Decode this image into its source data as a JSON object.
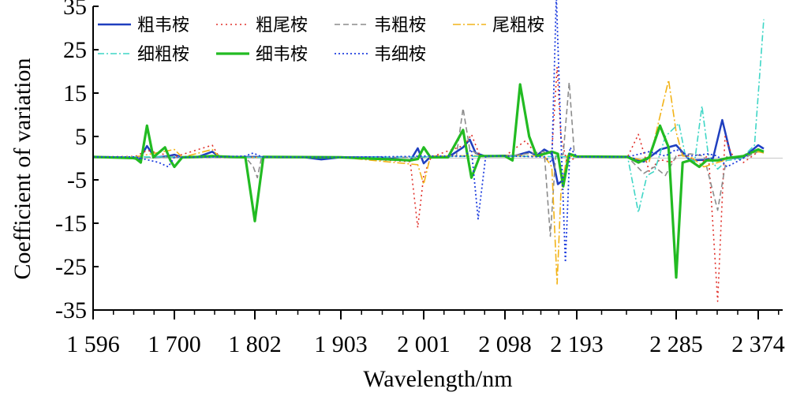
{
  "chart_data": {
    "type": "line",
    "xlabel": "Wavelength/nm",
    "ylabel": "Coefficient of variation",
    "xlim": [
      1596,
      2374
    ],
    "ylim": [
      -35,
      35
    ],
    "x_ticks": [
      1596,
      1700,
      1802,
      1903,
      2001,
      2098,
      2193,
      2285,
      2374
    ],
    "x_tick_labels": [
      "1 596",
      "1 700",
      "1 802",
      "1 903",
      "2 001",
      "2 098",
      "2 193",
      "2 285",
      "2 374"
    ],
    "y_ticks": [
      35,
      25,
      15,
      5,
      -5,
      -15,
      -25,
      -35
    ],
    "y_tick_labels": [
      "35",
      "25",
      "15",
      "5",
      "-5",
      "-15",
      "-25",
      "-35"
    ],
    "zero_line": true,
    "legend_position": "top-left",
    "series": [
      {
        "name": "粗韦桉",
        "color": "#1f3fbf",
        "dash": "solid",
        "width": 2.5,
        "points": [
          [
            1596,
            0.3
          ],
          [
            1640,
            0.2
          ],
          [
            1655,
            -0.3
          ],
          [
            1665,
            2.8
          ],
          [
            1675,
            0.2
          ],
          [
            1690,
            0.4
          ],
          [
            1700,
            0.8
          ],
          [
            1710,
            0.2
          ],
          [
            1730,
            0.3
          ],
          [
            1748,
            1.5
          ],
          [
            1757,
            0.4
          ],
          [
            1780,
            0.3
          ],
          [
            1802,
            0.3
          ],
          [
            1830,
            0.2
          ],
          [
            1860,
            0.2
          ],
          [
            1880,
            -0.3
          ],
          [
            1903,
            0.2
          ],
          [
            1950,
            0.2
          ],
          [
            1985,
            -0.6
          ],
          [
            1994,
            2.3
          ],
          [
            2001,
            -1.2
          ],
          [
            2009,
            0.3
          ],
          [
            2030,
            0.2
          ],
          [
            2048,
            2.5
          ],
          [
            2056,
            4.3
          ],
          [
            2063,
            1.2
          ],
          [
            2075,
            0.4
          ],
          [
            2098,
            0.6
          ],
          [
            2110,
            0.5
          ],
          [
            2130,
            1.5
          ],
          [
            2140,
            0.6
          ],
          [
            2150,
            2.0
          ],
          [
            2160,
            1.0
          ],
          [
            2168,
            -6.0
          ],
          [
            2175,
            -5.0
          ],
          [
            2183,
            1.0
          ],
          [
            2193,
            0.4
          ],
          [
            2220,
            0.3
          ],
          [
            2240,
            0.3
          ],
          [
            2255,
            -0.8
          ],
          [
            2270,
            2.0
          ],
          [
            2285,
            3.0
          ],
          [
            2300,
            -0.5
          ],
          [
            2315,
            -0.4
          ],
          [
            2325,
            0.0
          ],
          [
            2335,
            8.8
          ],
          [
            2345,
            0.0
          ],
          [
            2358,
            0.2
          ],
          [
            2374,
            3.0
          ],
          [
            2380,
            2.2
          ]
        ]
      },
      {
        "name": "粗尾桉",
        "color": "#e0302a",
        "dash": "2,4",
        "width": 1.6,
        "points": [
          [
            1596,
            0.3
          ],
          [
            1650,
            0.4
          ],
          [
            1665,
            1.8
          ],
          [
            1700,
            0.3
          ],
          [
            1748,
            3.0
          ],
          [
            1757,
            0.2
          ],
          [
            1802,
            0.2
          ],
          [
            1903,
            0.2
          ],
          [
            1985,
            -0.8
          ],
          [
            1994,
            -16.0
          ],
          [
            2001,
            -4.0
          ],
          [
            2010,
            0.3
          ],
          [
            2050,
            3.0
          ],
          [
            2058,
            5.5
          ],
          [
            2068,
            0.6
          ],
          [
            2098,
            0.5
          ],
          [
            2125,
            4.0
          ],
          [
            2140,
            0.8
          ],
          [
            2160,
            1.5
          ],
          [
            2167,
            21.0
          ],
          [
            2172,
            5.0
          ],
          [
            2180,
            -1.0
          ],
          [
            2193,
            0.3
          ],
          [
            2240,
            0.3
          ],
          [
            2250,
            5.5
          ],
          [
            2260,
            -3.0
          ],
          [
            2270,
            -0.3
          ],
          [
            2280,
            -1.0
          ],
          [
            2290,
            1.0
          ],
          [
            2300,
            0.2
          ],
          [
            2310,
            -2.0
          ],
          [
            2320,
            1.0
          ],
          [
            2330,
            -33.0
          ],
          [
            2338,
            5.0
          ],
          [
            2345,
            1.0
          ],
          [
            2358,
            -1.0
          ],
          [
            2374,
            1.5
          ],
          [
            2380,
            1.2
          ]
        ]
      },
      {
        "name": "韦粗桉",
        "color": "#8c8c8c",
        "dash": "7,4",
        "width": 1.6,
        "points": [
          [
            1596,
            0.3
          ],
          [
            1650,
            0.2
          ],
          [
            1700,
            0.2
          ],
          [
            1757,
            0.2
          ],
          [
            1790,
            0.3
          ],
          [
            1800,
            -2.0
          ],
          [
            1805,
            -4.5
          ],
          [
            1810,
            0.3
          ],
          [
            1903,
            0.2
          ],
          [
            2001,
            0.2
          ],
          [
            2040,
            0.5
          ],
          [
            2048,
            11.5
          ],
          [
            2056,
            2.0
          ],
          [
            2070,
            0.5
          ],
          [
            2098,
            0.4
          ],
          [
            2150,
            1.5
          ],
          [
            2158,
            -18.0
          ],
          [
            2165,
            0.5
          ],
          [
            2175,
            0.8
          ],
          [
            2183,
            17.5
          ],
          [
            2190,
            0.5
          ],
          [
            2240,
            0.3
          ],
          [
            2255,
            -3.5
          ],
          [
            2265,
            -2.0
          ],
          [
            2275,
            -4.0
          ],
          [
            2285,
            0.5
          ],
          [
            2300,
            1.0
          ],
          [
            2315,
            0.5
          ],
          [
            2330,
            -12.0
          ],
          [
            2340,
            0.5
          ],
          [
            2358,
            0.0
          ],
          [
            2374,
            1.5
          ],
          [
            2380,
            1.2
          ]
        ]
      },
      {
        "name": "尾粗桉",
        "color": "#f2b318",
        "dash": "10,3,2,3",
        "width": 1.6,
        "points": [
          [
            1596,
            0.3
          ],
          [
            1650,
            0.3
          ],
          [
            1700,
            2.0
          ],
          [
            1710,
            0.2
          ],
          [
            1748,
            2.0
          ],
          [
            1757,
            0.3
          ],
          [
            1802,
            0.2
          ],
          [
            1903,
            0.2
          ],
          [
            1994,
            -1.5
          ],
          [
            2001,
            -6.0
          ],
          [
            2009,
            0.5
          ],
          [
            2098,
            0.6
          ],
          [
            2150,
            0.5
          ],
          [
            2160,
            -2.0
          ],
          [
            2167,
            -29.0
          ],
          [
            2172,
            -8.0
          ],
          [
            2180,
            0.5
          ],
          [
            2193,
            0.3
          ],
          [
            2240,
            0.3
          ],
          [
            2260,
            -0.8
          ],
          [
            2278,
            18.0
          ],
          [
            2285,
            6.0
          ],
          [
            2292,
            0.5
          ],
          [
            2300,
            0.4
          ],
          [
            2315,
            -2.0
          ],
          [
            2330,
            -1.0
          ],
          [
            2345,
            0.0
          ],
          [
            2374,
            1.5
          ],
          [
            2380,
            1.2
          ]
        ]
      },
      {
        "name": "细粗桉",
        "color": "#3fd6c6",
        "dash": "8,3,2,3",
        "width": 1.6,
        "points": [
          [
            1596,
            0.3
          ],
          [
            1700,
            0.3
          ],
          [
            1802,
            0.2
          ],
          [
            1903,
            0.2
          ],
          [
            2001,
            0.3
          ],
          [
            2098,
            0.5
          ],
          [
            2193,
            0.3
          ],
          [
            2240,
            0.4
          ],
          [
            2250,
            -12.5
          ],
          [
            2258,
            -4.0
          ],
          [
            2265,
            -3.0
          ],
          [
            2275,
            5.0
          ],
          [
            2288,
            8.0
          ],
          [
            2295,
            0.5
          ],
          [
            2305,
            -0.8
          ],
          [
            2313,
            12.0
          ],
          [
            2320,
            0.5
          ],
          [
            2330,
            -2.5
          ],
          [
            2340,
            -0.5
          ],
          [
            2355,
            -0.2
          ],
          [
            2370,
            3.0
          ],
          [
            2380,
            32.0
          ]
        ]
      },
      {
        "name": "细韦桉",
        "color": "#22bb22",
        "dash": "solid",
        "width": 3.2,
        "points": [
          [
            1596,
            0.3
          ],
          [
            1650,
            0.0
          ],
          [
            1657,
            -1.0
          ],
          [
            1665,
            7.5
          ],
          [
            1673,
            0.2
          ],
          [
            1688,
            2.5
          ],
          [
            1695,
            -0.5
          ],
          [
            1700,
            -2.0
          ],
          [
            1710,
            0.2
          ],
          [
            1730,
            0.3
          ],
          [
            1748,
            0.5
          ],
          [
            1770,
            0.3
          ],
          [
            1790,
            0.2
          ],
          [
            1802,
            -14.5
          ],
          [
            1812,
            0.3
          ],
          [
            1903,
            0.2
          ],
          [
            1985,
            -0.5
          ],
          [
            1994,
            -0.2
          ],
          [
            2001,
            2.5
          ],
          [
            2009,
            0.2
          ],
          [
            2030,
            0.2
          ],
          [
            2048,
            6.5
          ],
          [
            2058,
            -4.5
          ],
          [
            2068,
            0.5
          ],
          [
            2098,
            0.5
          ],
          [
            2108,
            -0.5
          ],
          [
            2118,
            17.0
          ],
          [
            2130,
            5.0
          ],
          [
            2140,
            0.5
          ],
          [
            2160,
            1.5
          ],
          [
            2168,
            1.0
          ],
          [
            2175,
            -6.5
          ],
          [
            2183,
            1.0
          ],
          [
            2193,
            0.4
          ],
          [
            2240,
            0.3
          ],
          [
            2250,
            -1.0
          ],
          [
            2260,
            0.2
          ],
          [
            2270,
            7.5
          ],
          [
            2278,
            2.5
          ],
          [
            2285,
            -27.5
          ],
          [
            2292,
            -1.0
          ],
          [
            2300,
            -0.5
          ],
          [
            2310,
            -2.0
          ],
          [
            2318,
            -0.5
          ],
          [
            2330,
            -0.5
          ],
          [
            2340,
            0.0
          ],
          [
            2358,
            0.5
          ],
          [
            2374,
            2.0
          ],
          [
            2380,
            1.5
          ]
        ]
      },
      {
        "name": "韦细桉",
        "color": "#1f3fdf",
        "dash": "2,3",
        "width": 1.8,
        "points": [
          [
            1596,
            0.3
          ],
          [
            1650,
            0.3
          ],
          [
            1680,
            -1.0
          ],
          [
            1692,
            -2.0
          ],
          [
            1700,
            0.2
          ],
          [
            1757,
            0.3
          ],
          [
            1790,
            0.5
          ],
          [
            1800,
            1.2
          ],
          [
            1810,
            0.3
          ],
          [
            1903,
            0.2
          ],
          [
            1985,
            0.4
          ],
          [
            2001,
            0.5
          ],
          [
            2050,
            0.5
          ],
          [
            2058,
            2.0
          ],
          [
            2066,
            -14.0
          ],
          [
            2075,
            0.5
          ],
          [
            2098,
            0.5
          ],
          [
            2150,
            0.3
          ],
          [
            2160,
            -1.0
          ],
          [
            2166,
            37.5
          ],
          [
            2172,
            5.0
          ],
          [
            2178,
            -24.0
          ],
          [
            2184,
            2.5
          ],
          [
            2193,
            0.3
          ],
          [
            2240,
            0.3
          ],
          [
            2260,
            1.5
          ],
          [
            2275,
            0.5
          ],
          [
            2285,
            2.0
          ],
          [
            2300,
            0.5
          ],
          [
            2320,
            1.0
          ],
          [
            2330,
            0.5
          ],
          [
            2340,
            -2.0
          ],
          [
            2358,
            0.0
          ],
          [
            2374,
            3.0
          ],
          [
            2380,
            2.0
          ]
        ]
      }
    ]
  }
}
